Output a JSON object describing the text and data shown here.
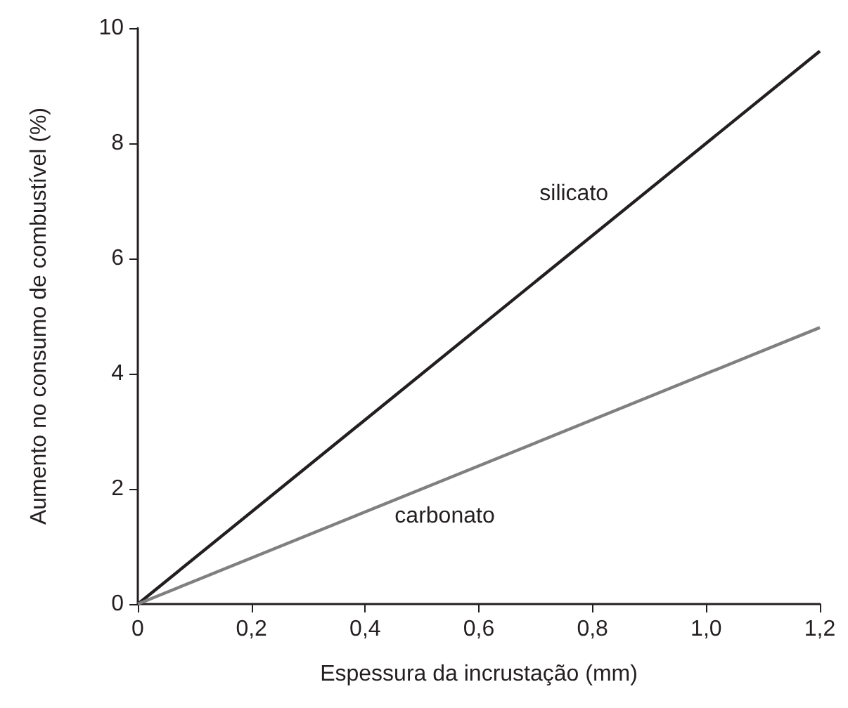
{
  "chart_data": {
    "type": "line",
    "xlabel": "Espessura da incrustação (mm)",
    "ylabel": "Aumento no consumo de combustível (%)",
    "x": [
      0,
      1.2
    ],
    "series": [
      {
        "name": "silicato",
        "color": "#231f20",
        "values": [
          0,
          9.6
        ]
      },
      {
        "name": "carbonato",
        "color": "#808080",
        "values": [
          0,
          4.8
        ]
      }
    ],
    "xlim": [
      0,
      1.2
    ],
    "ylim": [
      0,
      10
    ],
    "xticks": [
      0,
      {
        "value": 0.2,
        "label": "0,2"
      },
      {
        "value": 0.4,
        "label": "0,4"
      },
      {
        "value": 0.6,
        "label": "0,6"
      },
      {
        "value": 0.8,
        "label": "0,8"
      },
      {
        "value": 1.0,
        "label": "1,0"
      },
      {
        "value": 1.2,
        "label": "1,2"
      }
    ],
    "yticks": [
      0,
      2,
      4,
      6,
      8,
      10
    ],
    "line_style": "solid",
    "grid": false
  }
}
